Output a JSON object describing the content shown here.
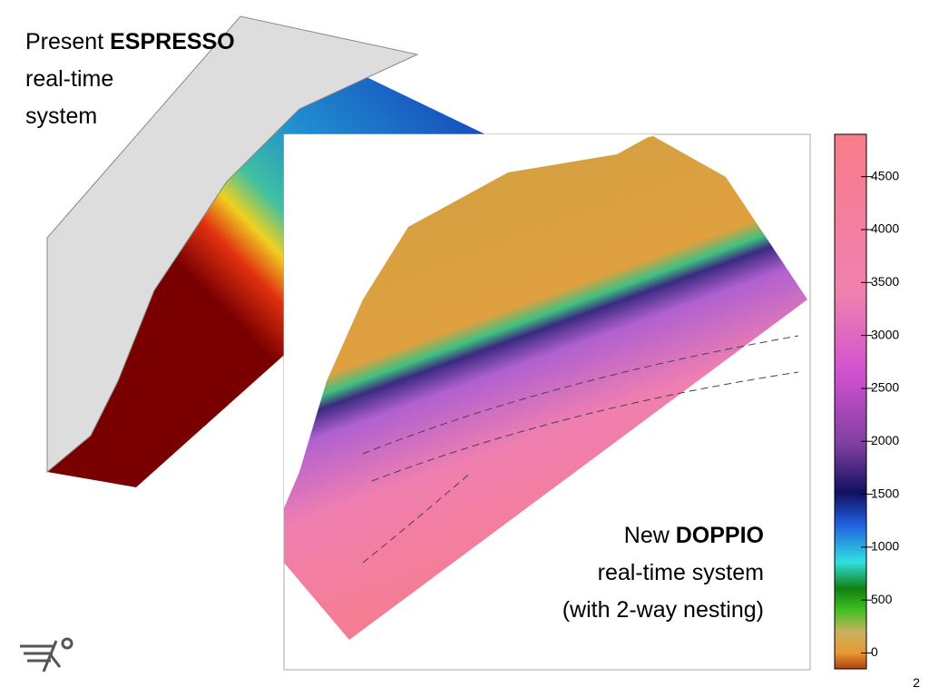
{
  "left_label": {
    "prefix": "Present",
    "name": "ESPRESSO",
    "lines": [
      "real-time",
      "system"
    ]
  },
  "right_label": {
    "prefix": "New",
    "name": "DOPPIO",
    "lines": [
      "real-time system",
      "(with 2-way nesting)"
    ]
  },
  "colorbar": {
    "lim": [
      -150,
      4900
    ],
    "ticks": [
      0,
      500,
      1000,
      1500,
      2000,
      2500,
      3000,
      3500,
      4000,
      4500
    ]
  },
  "page_number": "2"
}
